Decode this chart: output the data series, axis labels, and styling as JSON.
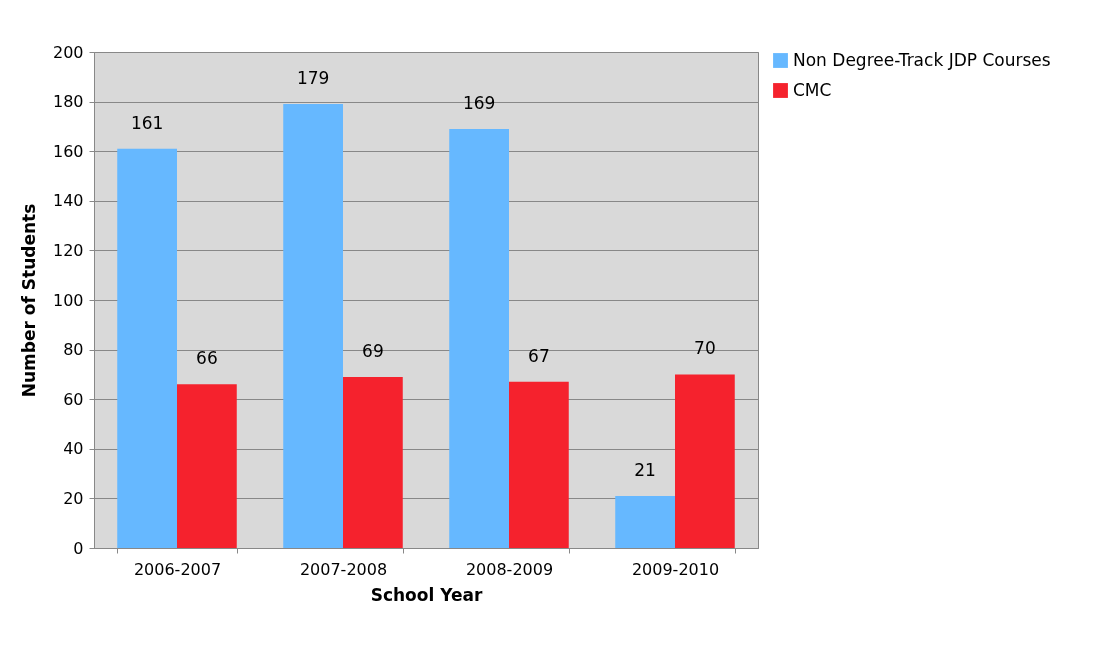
{
  "chart_data": {
    "type": "bar",
    "xlabel": "School Year",
    "ylabel": "Number of Students",
    "categories": [
      "2006-2007",
      "2007-2008",
      "2008-2009",
      "2009-2010"
    ],
    "series": [
      {
        "name": "Non Degree-Track JDP Courses",
        "color": "#66b8ff",
        "values": [
          161,
          179,
          169,
          21
        ]
      },
      {
        "name": "CMC",
        "color": "#f5222d",
        "values": [
          66,
          69,
          67,
          70
        ]
      }
    ],
    "ylim": [
      0,
      200
    ],
    "yticks": [
      0,
      20,
      40,
      60,
      80,
      100,
      120,
      140,
      160,
      180,
      200
    ],
    "grid": "y",
    "legend": "right",
    "data_labels": true
  }
}
